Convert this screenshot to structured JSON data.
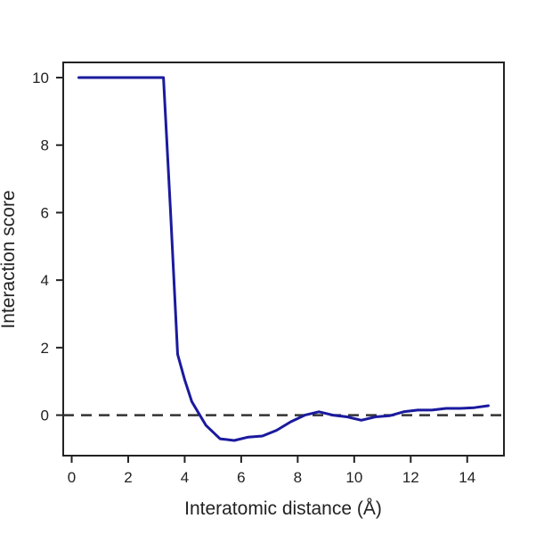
{
  "chart_data": {
    "type": "line",
    "title": "",
    "xlabel": "Interatomic distance (Å)",
    "ylabel": "Interaction score",
    "xlim": [
      -0.3,
      15.3
    ],
    "ylim": [
      -1.2,
      10.45
    ],
    "xticks": [
      0,
      2,
      4,
      6,
      8,
      10,
      12,
      14
    ],
    "yticks": [
      0,
      2,
      4,
      6,
      8,
      10
    ],
    "grid": false,
    "legend": "none",
    "reference_line": {
      "y": 0,
      "style": "dashed",
      "color": "#333333"
    },
    "series": [
      {
        "color": "#1a1a9e",
        "points": [
          [
            0.25,
            10.0
          ],
          [
            3.25,
            10.0
          ],
          [
            3.5,
            6.0
          ],
          [
            3.75,
            1.8
          ],
          [
            4.0,
            1.05
          ],
          [
            4.25,
            0.4
          ],
          [
            4.5,
            0.05
          ],
          [
            4.75,
            -0.3
          ],
          [
            5.25,
            -0.7
          ],
          [
            5.75,
            -0.75
          ],
          [
            6.25,
            -0.65
          ],
          [
            6.75,
            -0.62
          ],
          [
            7.25,
            -0.45
          ],
          [
            7.75,
            -0.2
          ],
          [
            8.25,
            0.0
          ],
          [
            8.75,
            0.1
          ],
          [
            9.25,
            0.0
          ],
          [
            9.75,
            -0.05
          ],
          [
            10.25,
            -0.15
          ],
          [
            10.75,
            -0.05
          ],
          [
            11.25,
            -0.02
          ],
          [
            11.75,
            0.1
          ],
          [
            12.25,
            0.15
          ],
          [
            12.75,
            0.15
          ],
          [
            13.25,
            0.2
          ],
          [
            13.75,
            0.2
          ],
          [
            14.25,
            0.22
          ],
          [
            14.75,
            0.28
          ]
        ]
      }
    ]
  }
}
